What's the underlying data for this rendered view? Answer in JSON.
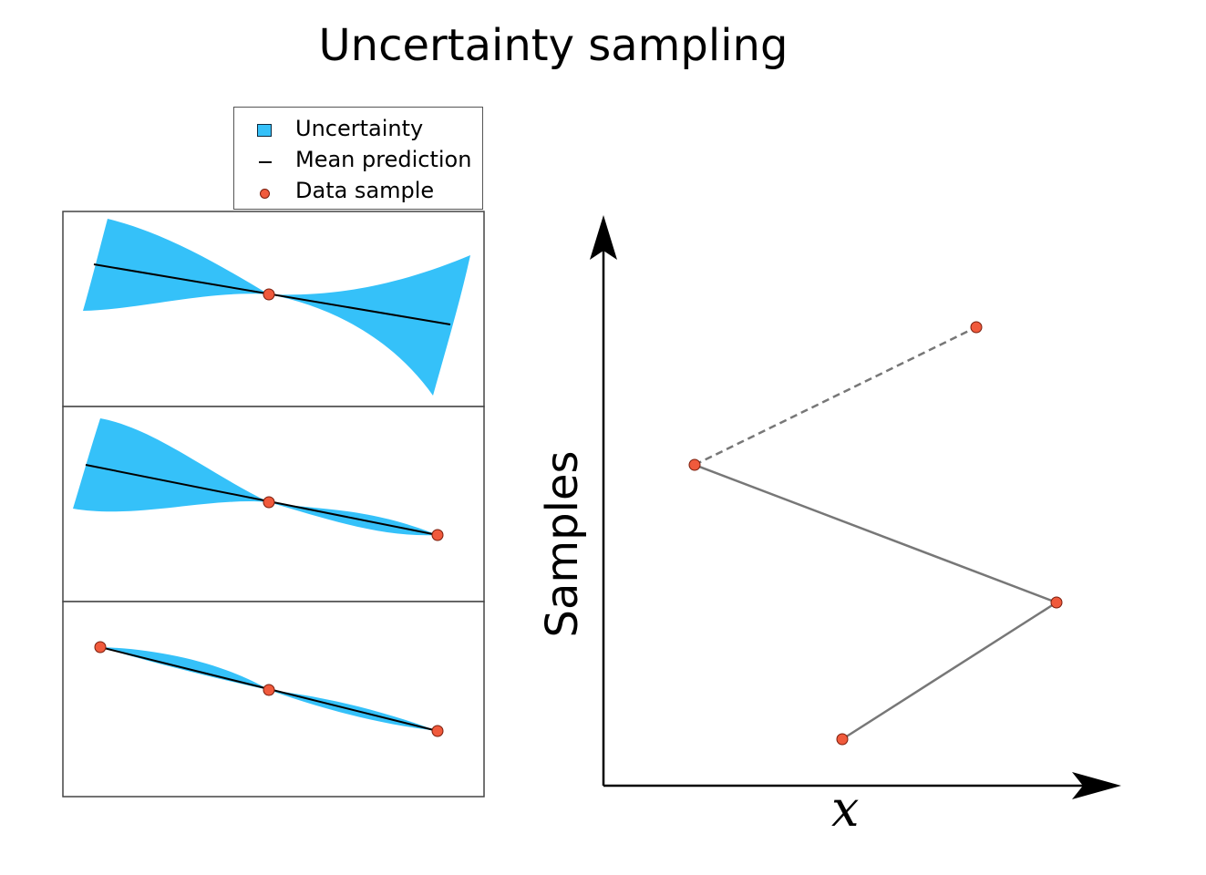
{
  "title": "Uncertainty sampling",
  "legend": {
    "uncertainty": "Uncertainty",
    "mean_prediction": "Mean prediction",
    "data_sample": "Data sample"
  },
  "axes": {
    "y_label": "Samples",
    "x_label": "x"
  },
  "colors": {
    "uncertainty_fill": "#35c1f9",
    "sample_point": "#f05a3c",
    "path_line": "#777777",
    "mean_line": "#000000"
  }
}
